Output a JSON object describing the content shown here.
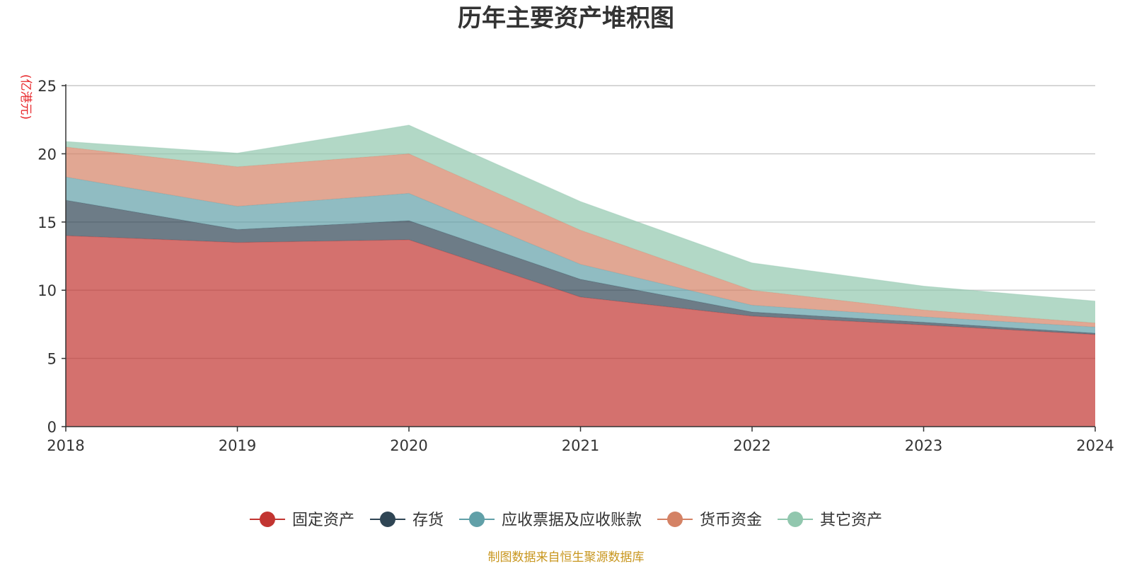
{
  "chart_data": {
    "type": "area",
    "stacked": true,
    "title": "历年主要资产堆积图",
    "unit_label": "(亿港元)",
    "source": "制图数据来自恒生聚源数据库",
    "x": [
      "2018",
      "2019",
      "2020",
      "2021",
      "2022",
      "2023",
      "2024"
    ],
    "ylim": [
      0,
      25
    ],
    "yticks": [
      "0",
      "5",
      "10",
      "15",
      "20",
      "25"
    ],
    "grid": true,
    "legend_position": "bottom",
    "series": [
      {
        "name": "固定资产",
        "color": "#c23531",
        "values": [
          14.0,
          13.5,
          13.7,
          9.5,
          8.1,
          7.45,
          6.75
        ]
      },
      {
        "name": "存货",
        "color": "#2f4554",
        "values": [
          2.6,
          0.95,
          1.4,
          1.3,
          0.3,
          0.2,
          0.1
        ]
      },
      {
        "name": "应收票据及应收账款",
        "color": "#61a0a8",
        "values": [
          1.7,
          1.7,
          2.0,
          1.1,
          0.5,
          0.4,
          0.45
        ]
      },
      {
        "name": "货币资金",
        "color": "#d48265",
        "values": [
          2.2,
          2.9,
          2.9,
          2.5,
          1.1,
          0.5,
          0.3
        ]
      },
      {
        "name": "其它资产",
        "color": "#91c7ae",
        "values": [
          0.4,
          1.0,
          2.1,
          2.1,
          2.0,
          1.75,
          1.6
        ]
      }
    ]
  }
}
